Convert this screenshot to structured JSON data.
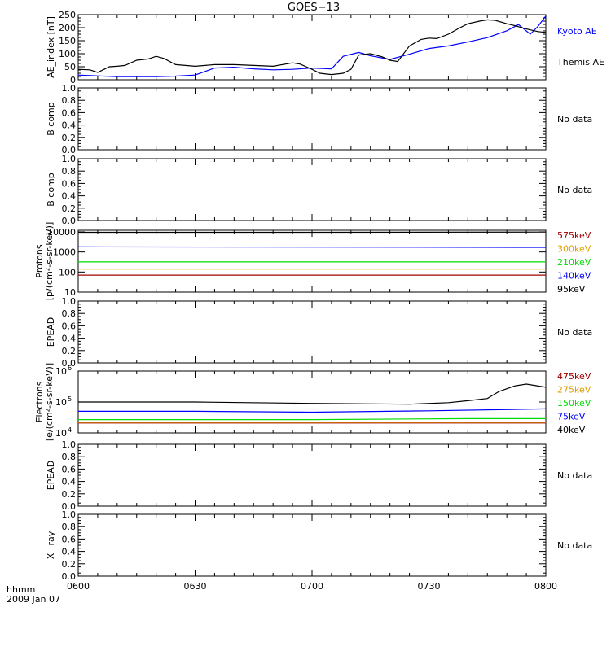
{
  "title": "GOES−13",
  "footer": {
    "label_line1": "hhmm",
    "label_line2": "2009 Jan 07"
  },
  "time_ticks": [
    "0600",
    "0630",
    "0700",
    "0730",
    "0800"
  ],
  "colors": {
    "black": "#000000",
    "blue": "#0000ff",
    "green": "#00dd00",
    "orange": "#e0a000",
    "red": "#a00000"
  },
  "chart_data": [
    {
      "type": "line",
      "panel": "ae-index",
      "ylabel": "AE_index [nT]",
      "yticks": [
        "0",
        "50",
        "100",
        "150",
        "200",
        "250"
      ],
      "ylim": [
        0,
        250
      ],
      "x_unit": "minutes after 0600 UT",
      "series": [
        {
          "name": "Kyoto AE",
          "color": "#0000ff",
          "x": [
            0,
            5,
            10,
            15,
            20,
            25,
            30,
            35,
            40,
            45,
            50,
            55,
            60,
            65,
            68,
            72,
            75,
            80,
            85,
            90,
            95,
            100,
            105,
            110,
            113,
            116,
            118,
            120
          ],
          "y": [
            18,
            15,
            12,
            12,
            12,
            14,
            18,
            45,
            48,
            42,
            38,
            40,
            45,
            42,
            90,
            105,
            92,
            78,
            98,
            120,
            130,
            145,
            162,
            188,
            212,
            175,
            205,
            245
          ]
        },
        {
          "name": "Themis AE",
          "color": "#000000",
          "x": [
            0,
            3,
            5,
            8,
            10,
            12,
            15,
            18,
            20,
            22,
            25,
            30,
            35,
            40,
            45,
            50,
            55,
            57,
            60,
            62,
            65,
            68,
            70,
            72,
            75,
            78,
            80,
            82,
            85,
            88,
            90,
            92,
            95,
            98,
            100,
            103,
            105,
            107,
            110,
            112,
            115,
            118,
            120
          ],
          "y": [
            40,
            38,
            28,
            50,
            52,
            55,
            75,
            80,
            90,
            82,
            58,
            52,
            58,
            58,
            55,
            52,
            65,
            60,
            40,
            25,
            20,
            25,
            40,
            95,
            100,
            88,
            75,
            70,
            130,
            155,
            160,
            158,
            175,
            200,
            215,
            225,
            230,
            228,
            215,
            208,
            195,
            185,
            182
          ]
        }
      ]
    },
    {
      "type": "line",
      "panel": "b-comp-1",
      "ylabel": "B comp",
      "yticks": [
        "0.0",
        "0.2",
        "0.4",
        "0.6",
        "0.8",
        "1.0"
      ],
      "ylim": [
        0,
        1
      ],
      "status": "No data",
      "series": []
    },
    {
      "type": "line",
      "panel": "b-comp-2",
      "ylabel": "B comp",
      "yticks": [
        "0.0",
        "0.2",
        "0.4",
        "0.6",
        "0.8",
        "1.0"
      ],
      "ylim": [
        0,
        1
      ],
      "status": "No data",
      "series": []
    },
    {
      "type": "line",
      "panel": "protons",
      "ylabel_line1": "Protons",
      "ylabel_line2": "[p/(cm²-s-sr-keV)]",
      "yticks": [
        "10",
        "100",
        "1000",
        "10000"
      ],
      "ylim": [
        10,
        10000
      ],
      "yscale": "log",
      "series": [
        {
          "name": "575keV",
          "color": "#a00000",
          "x": [
            0,
            60,
            120
          ],
          "y": [
            70,
            70,
            70
          ]
        },
        {
          "name": "300keV",
          "color": "#e0a000",
          "x": [
            0,
            60,
            120
          ],
          "y": [
            140,
            140,
            140
          ]
        },
        {
          "name": "210keV",
          "color": "#00dd00",
          "x": [
            0,
            60,
            120
          ],
          "y": [
            320,
            320,
            320
          ]
        },
        {
          "name": "140keV",
          "color": "#0000ff",
          "x": [
            0,
            60,
            120
          ],
          "y": [
            1800,
            1750,
            1700
          ]
        },
        {
          "name": "95keV",
          "color": "#000000",
          "x": [
            0,
            60,
            120
          ],
          "y": [
            9500,
            9500,
            9800
          ]
        }
      ]
    },
    {
      "type": "line",
      "panel": "epead-1",
      "ylabel": "EPEAD",
      "yticks": [
        "0.0",
        "0.2",
        "0.4",
        "0.6",
        "0.8",
        "1.0"
      ],
      "ylim": [
        0,
        1
      ],
      "status": "No data",
      "series": []
    },
    {
      "type": "line",
      "panel": "electrons",
      "ylabel_line1": "Electrons",
      "ylabel_line2": "[e/(cm²-s-sr-keV)]",
      "ytick_bases": [
        "10",
        "10",
        "10"
      ],
      "ytick_exps": [
        "4",
        "5",
        "6"
      ],
      "ylim": [
        10000,
        1000000
      ],
      "yscale": "log",
      "series": [
        {
          "name": "475keV",
          "color": "#a00000",
          "x": [
            0,
            60,
            120
          ],
          "y": [
            21000,
            21000,
            21000
          ]
        },
        {
          "name": "275keV",
          "color": "#e0a000",
          "x": [
            0,
            60,
            120
          ],
          "y": [
            22000,
            22000,
            22000
          ]
        },
        {
          "name": "150keV",
          "color": "#00dd00",
          "x": [
            0,
            60,
            100,
            120
          ],
          "y": [
            27000,
            27000,
            29000,
            29000
          ]
        },
        {
          "name": "75keV",
          "color": "#0000ff",
          "x": [
            0,
            30,
            60,
            90,
            120
          ],
          "y": [
            50000,
            50000,
            47000,
            52000,
            60000
          ]
        },
        {
          "name": "40keV",
          "color": "#000000",
          "x": [
            0,
            30,
            60,
            85,
            95,
            100,
            105,
            108,
            112,
            115,
            120
          ],
          "y": [
            100000,
            100000,
            90000,
            85000,
            95000,
            110000,
            130000,
            220000,
            330000,
            380000,
            300000
          ]
        }
      ]
    },
    {
      "type": "line",
      "panel": "epead-2",
      "ylabel": "EPEAD",
      "yticks": [
        "0.0",
        "0.2",
        "0.4",
        "0.6",
        "0.8",
        "1.0"
      ],
      "ylim": [
        0,
        1
      ],
      "status": "No data",
      "series": []
    },
    {
      "type": "line",
      "panel": "x-ray",
      "ylabel": "X−ray",
      "yticks": [
        "0.0",
        "0.2",
        "0.4",
        "0.6",
        "0.8",
        "1.0"
      ],
      "ylim": [
        0,
        1
      ],
      "status": "No data",
      "series": []
    }
  ]
}
